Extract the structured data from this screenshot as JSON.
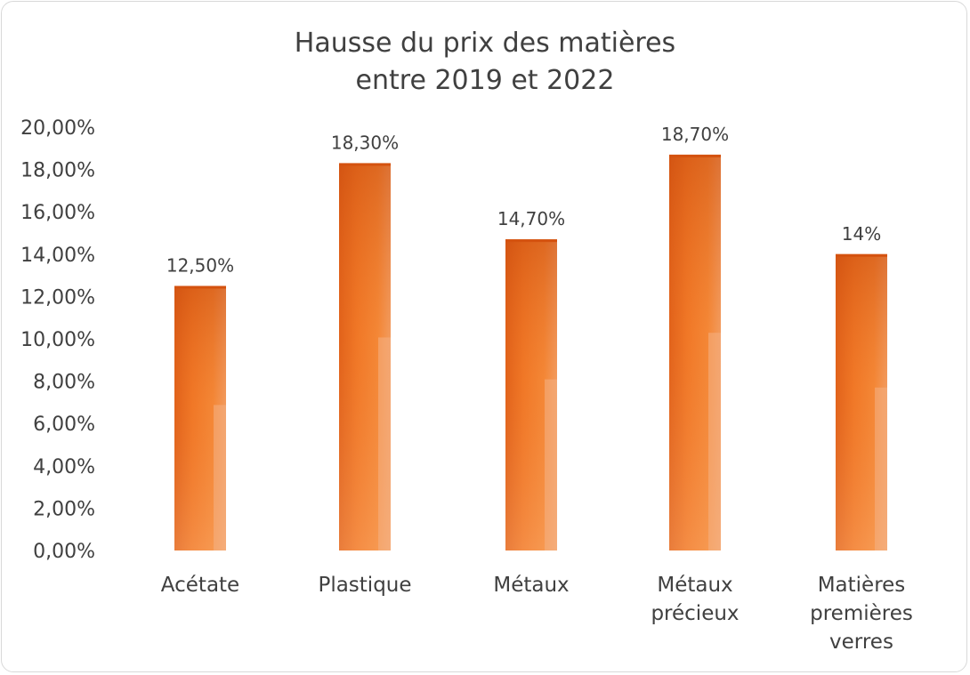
{
  "chart_data": {
    "type": "bar",
    "title_lines": [
      "Hausse du prix des matières",
      "entre 2019 et 2022"
    ],
    "categories": [
      [
        "Acétate"
      ],
      [
        "Plastique"
      ],
      [
        "Métaux"
      ],
      [
        "Métaux",
        "précieux"
      ],
      [
        "Matières",
        "premières",
        "verres"
      ]
    ],
    "values": [
      12.5,
      18.3,
      14.7,
      18.7,
      14.0
    ],
    "data_labels": [
      "12,50%",
      "18,30%",
      "14,70%",
      "18,70%",
      "14%"
    ],
    "y_ticks": [
      0,
      2,
      4,
      6,
      8,
      10,
      12,
      14,
      16,
      18,
      20
    ],
    "y_tick_labels": [
      "0,00%",
      "2,00%",
      "4,00%",
      "6,00%",
      "8,00%",
      "10,00%",
      "12,00%",
      "14,00%",
      "16,00%",
      "18,00%",
      "20,00%"
    ],
    "ylim": [
      0,
      20
    ],
    "grid": false,
    "legend": "none",
    "bar_colors": {
      "top": "#d4520f",
      "mid": "#f47c2a",
      "light": "#f9a45c",
      "right_edge": "#f4b183"
    }
  }
}
